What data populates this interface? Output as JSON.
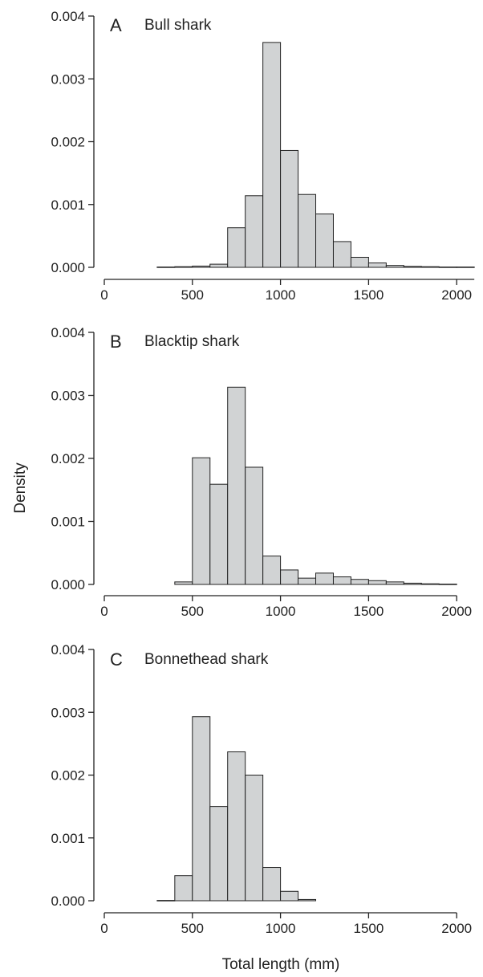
{
  "figure": {
    "ylabel": "Density",
    "xlabel": "Total length (mm)"
  },
  "chart_data": [
    {
      "type": "bar",
      "panel": "A",
      "title": "Bull shark",
      "bin_width": 100,
      "bins": [
        300,
        400,
        500,
        600,
        700,
        800,
        900,
        1000,
        1100,
        1200,
        1300,
        1400,
        1500,
        1600,
        1700,
        1800,
        1900,
        2000
      ],
      "values": [
        5e-06,
        1e-05,
        2e-05,
        5e-05,
        0.00063,
        0.00114,
        0.00358,
        0.00186,
        0.00116,
        0.00085,
        0.00041,
        0.00016,
        7e-05,
        3e-05,
        1.5e-05,
        1e-05,
        5e-06,
        5e-06
      ],
      "xlim": [
        0,
        2100
      ],
      "ylim": [
        0,
        0.004
      ],
      "x_ticks": [
        "0",
        "500",
        "1000",
        "1500",
        "2000"
      ],
      "y_ticks": [
        "0.000",
        "0.001",
        "0.002",
        "0.003",
        "0.004"
      ]
    },
    {
      "type": "bar",
      "panel": "B",
      "title": "Blacktip shark",
      "bin_width": 100,
      "bins": [
        400,
        500,
        600,
        700,
        800,
        900,
        1000,
        1100,
        1200,
        1300,
        1400,
        1500,
        1600,
        1700,
        1800,
        1900
      ],
      "values": [
        4e-05,
        0.00201,
        0.00159,
        0.00313,
        0.00186,
        0.00045,
        0.00023,
        0.0001,
        0.00018,
        0.00012,
        8e-05,
        6e-05,
        4e-05,
        2e-05,
        1e-05,
        5e-06
      ],
      "xlim": [
        0,
        2000
      ],
      "ylim": [
        0,
        0.004
      ],
      "x_ticks": [
        "0",
        "500",
        "1000",
        "1500",
        "2000"
      ],
      "y_ticks": [
        "0.000",
        "0.001",
        "0.002",
        "0.003",
        "0.004"
      ]
    },
    {
      "type": "bar",
      "panel": "C",
      "title": "Bonnethead shark",
      "bin_width": 100,
      "bins": [
        300,
        400,
        500,
        600,
        700,
        800,
        900,
        1000,
        1100
      ],
      "values": [
        5e-06,
        0.0004,
        0.00293,
        0.0015,
        0.00237,
        0.002,
        0.00053,
        0.00015,
        2e-05
      ],
      "xlim": [
        0,
        2000
      ],
      "ylim": [
        0,
        0.004
      ],
      "x_ticks": [
        "0",
        "500",
        "1000",
        "1500",
        "2000"
      ],
      "y_ticks": [
        "0.000",
        "0.001",
        "0.002",
        "0.003",
        "0.004"
      ]
    }
  ]
}
